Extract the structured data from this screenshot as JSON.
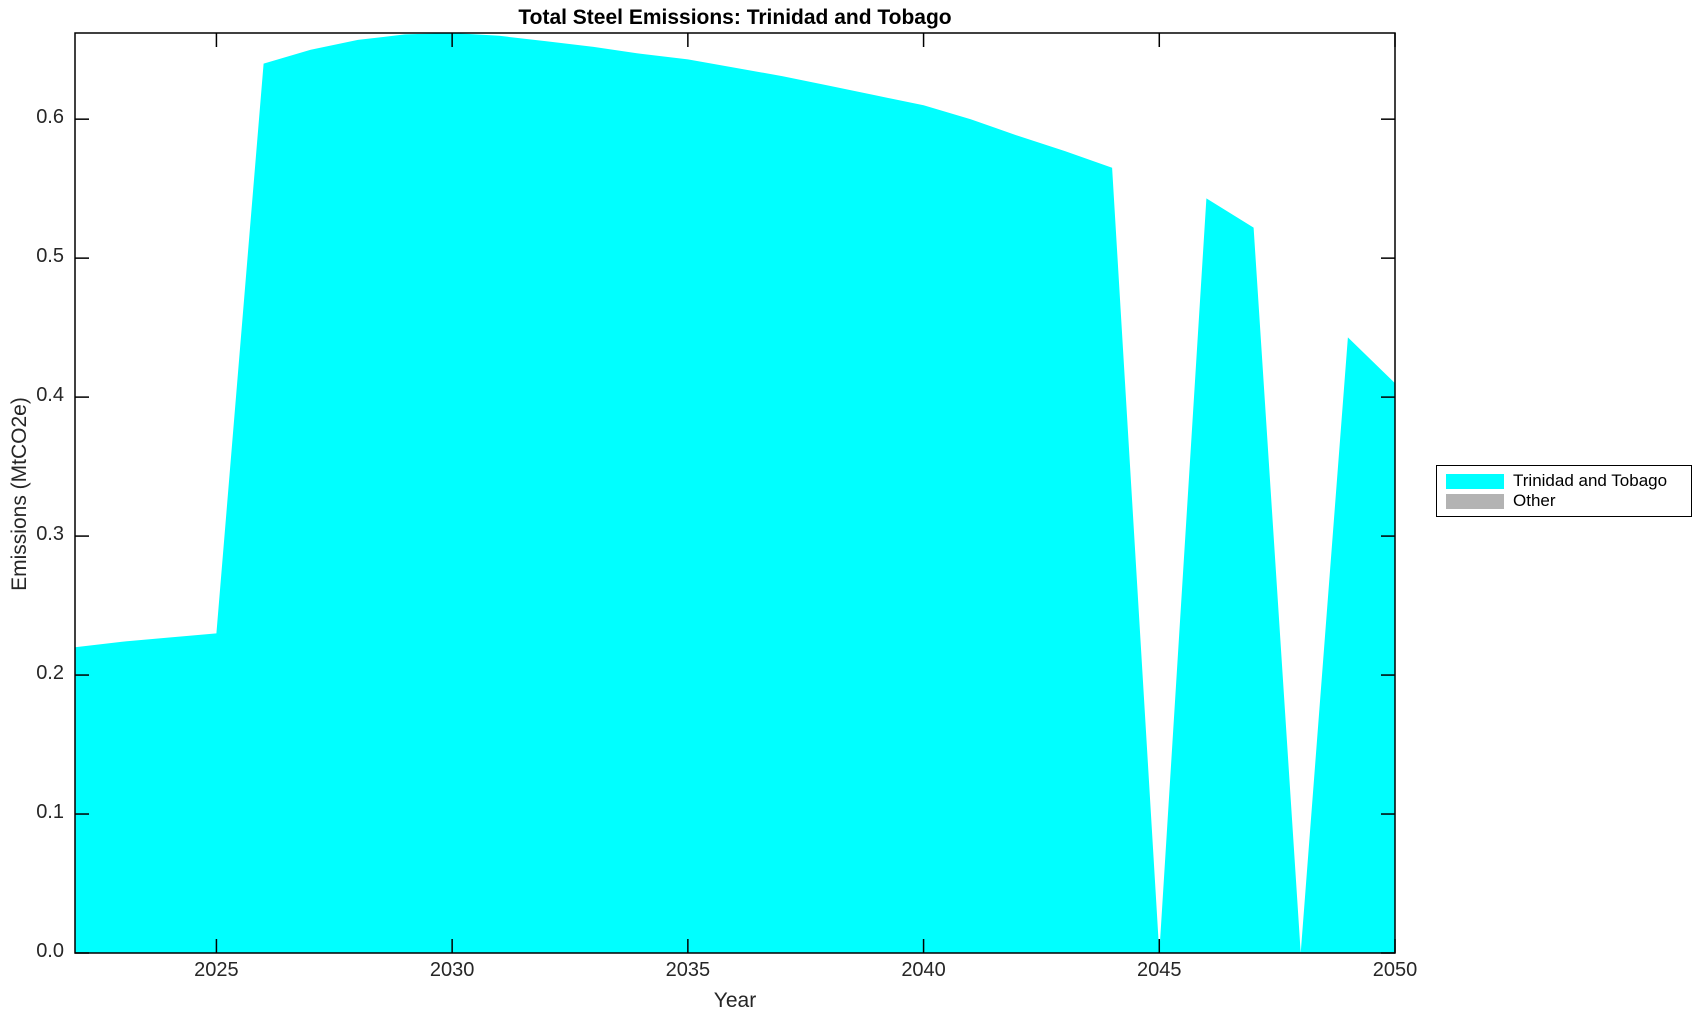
{
  "figure": {
    "title": "Total Steel Emissions: Trinidad and Tobago",
    "xlabel": "Year",
    "ylabel": "Emissions (MtCO2e)"
  },
  "legend": {
    "items": [
      {
        "label": "Trinidad and Tobago",
        "color": "#00FFFF"
      },
      {
        "label": "Other",
        "color": "#B3B3B3"
      }
    ]
  },
  "chart_data": {
    "type": "area",
    "title": "Total Steel Emissions: Trinidad and Tobago",
    "xlabel": "Year",
    "ylabel": "Emissions (MtCO2e)",
    "x": [
      2022,
      2023,
      2024,
      2025,
      2026,
      2027,
      2028,
      2029,
      2030,
      2031,
      2032,
      2033,
      2034,
      2035,
      2036,
      2037,
      2038,
      2039,
      2040,
      2041,
      2042,
      2043,
      2044,
      2045,
      2046,
      2047,
      2048,
      2049,
      2050
    ],
    "series": [
      {
        "name": "Trinidad and Tobago",
        "color": "#00FFFF",
        "values": [
          0.22,
          0.224,
          0.227,
          0.23,
          0.64,
          0.65,
          0.657,
          0.661,
          0.662,
          0.66,
          0.656,
          0.652,
          0.647,
          0.643,
          0.637,
          0.631,
          0.624,
          0.617,
          0.61,
          0.6,
          0.588,
          0.577,
          0.565,
          0.0,
          0.543,
          0.522,
          0.0,
          0.443,
          0.41
        ]
      },
      {
        "name": "Other",
        "color": "#B3B3B3",
        "values": [
          0,
          0,
          0,
          0,
          0,
          0,
          0,
          0,
          0,
          0,
          0,
          0,
          0,
          0,
          0,
          0,
          0,
          0,
          0,
          0,
          0,
          0,
          0,
          0,
          0,
          0,
          0,
          0,
          0
        ]
      }
    ],
    "xlim": [
      2022,
      2050
    ],
    "ylim": [
      0,
      0.662
    ],
    "x_ticks": [
      2025,
      2030,
      2035,
      2040,
      2045,
      2050
    ],
    "x_tick_labels": [
      "2025",
      "2030",
      "2035",
      "2040",
      "2045",
      "2050"
    ],
    "y_ticks": [
      0.0,
      0.1,
      0.2,
      0.3,
      0.4,
      0.5,
      0.6
    ],
    "y_tick_labels": [
      "0.0",
      "0.1",
      "0.2",
      "0.3",
      "0.4",
      "0.5",
      "0.6"
    ],
    "grid": false,
    "legend_position": "right-outside",
    "axis_color": "#000000",
    "tick_label_color": "#262626",
    "background": "#FFFFFF"
  }
}
